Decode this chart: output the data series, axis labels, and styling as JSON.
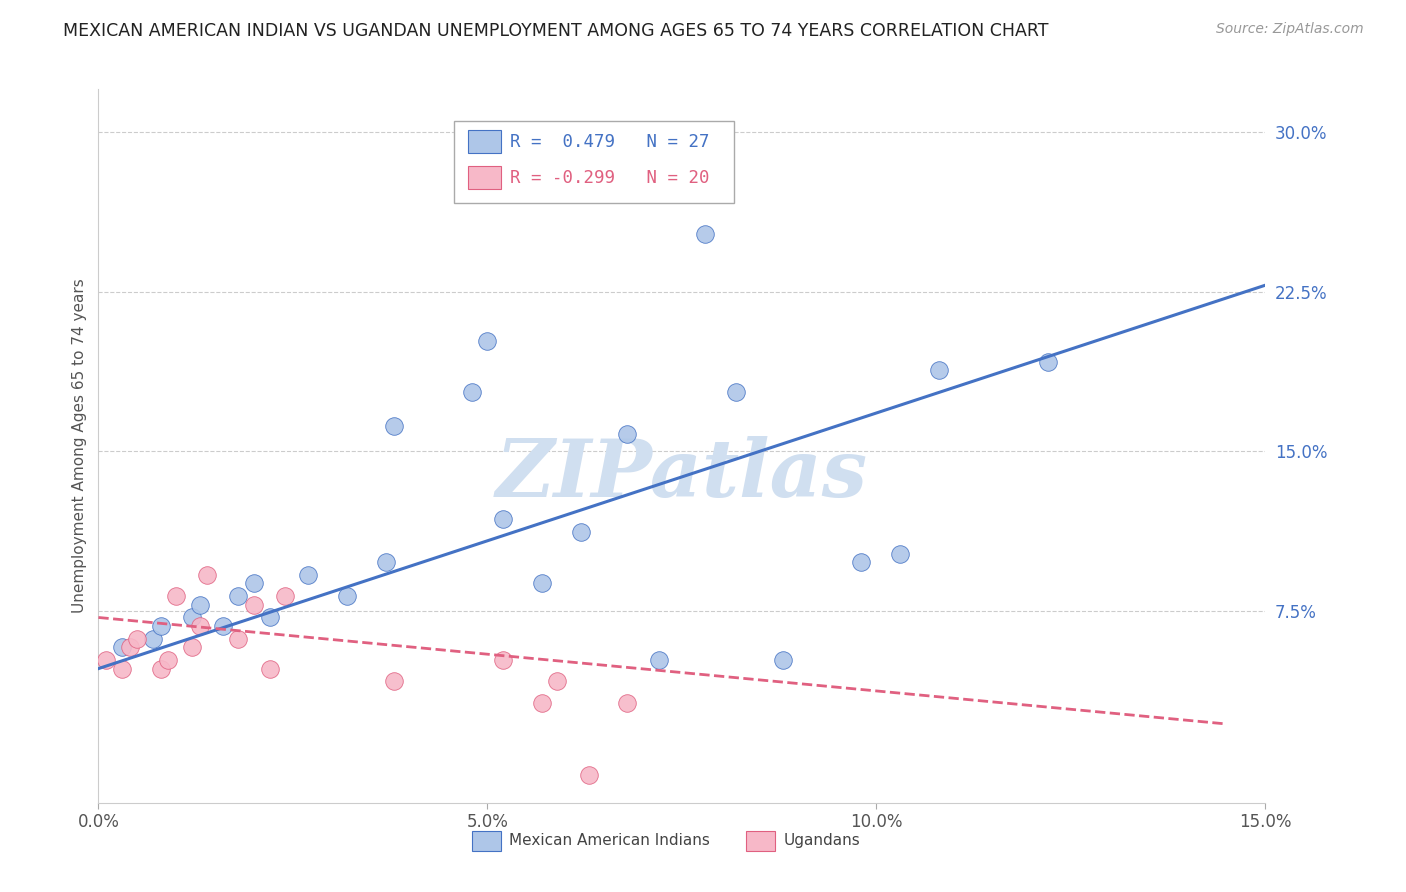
{
  "title": "MEXICAN AMERICAN INDIAN VS UGANDAN UNEMPLOYMENT AMONG AGES 65 TO 74 YEARS CORRELATION CHART",
  "source": "Source: ZipAtlas.com",
  "ylabel": "Unemployment Among Ages 65 to 74 years",
  "xlim": [
    0.0,
    0.15
  ],
  "ylim": [
    -0.015,
    0.32
  ],
  "yticks": [
    0.0,
    0.075,
    0.15,
    0.225,
    0.3
  ],
  "ytick_labels": [
    "",
    "7.5%",
    "15.0%",
    "22.5%",
    "30.0%"
  ],
  "xticks": [
    0.0,
    0.05,
    0.1,
    0.15
  ],
  "xtick_labels": [
    "0.0%",
    "5.0%",
    "10.0%",
    "15.0%"
  ],
  "legend_r_blue": "R =  0.479",
  "legend_n_blue": "N = 27",
  "legend_r_pink": "R = -0.299",
  "legend_n_pink": "N = 20",
  "blue_scatter_x": [
    0.003,
    0.007,
    0.008,
    0.012,
    0.013,
    0.016,
    0.018,
    0.02,
    0.022,
    0.027,
    0.032,
    0.037,
    0.038,
    0.048,
    0.05,
    0.052,
    0.057,
    0.062,
    0.068,
    0.072,
    0.078,
    0.082,
    0.088,
    0.098,
    0.103,
    0.108,
    0.122
  ],
  "blue_scatter_y": [
    0.058,
    0.062,
    0.068,
    0.072,
    0.078,
    0.068,
    0.082,
    0.088,
    0.072,
    0.092,
    0.082,
    0.098,
    0.162,
    0.178,
    0.202,
    0.118,
    0.088,
    0.112,
    0.158,
    0.052,
    0.252,
    0.178,
    0.052,
    0.098,
    0.102,
    0.188,
    0.192
  ],
  "pink_scatter_x": [
    0.001,
    0.003,
    0.004,
    0.005,
    0.008,
    0.009,
    0.01,
    0.012,
    0.013,
    0.014,
    0.018,
    0.02,
    0.022,
    0.024,
    0.038,
    0.052,
    0.057,
    0.059,
    0.063,
    0.068
  ],
  "pink_scatter_y": [
    0.052,
    0.048,
    0.058,
    0.062,
    0.048,
    0.052,
    0.082,
    0.058,
    0.068,
    0.092,
    0.062,
    0.078,
    0.048,
    0.082,
    0.042,
    0.052,
    0.032,
    0.042,
    -0.002,
    0.032
  ],
  "blue_line_x": [
    0.0,
    0.15
  ],
  "blue_line_y": [
    0.048,
    0.228
  ],
  "pink_line_x": [
    0.0,
    0.145
  ],
  "pink_line_y": [
    0.072,
    0.022
  ],
  "blue_color": "#aec6e8",
  "blue_line_color": "#4472c4",
  "pink_color": "#f7b8c8",
  "pink_line_color": "#e06080",
  "watermark": "ZIPatlas",
  "watermark_color": "#d0dff0",
  "background_color": "#ffffff",
  "grid_color": "#cccccc"
}
